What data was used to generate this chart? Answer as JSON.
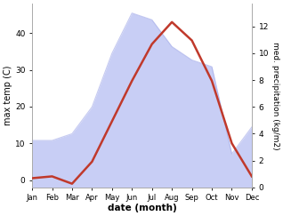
{
  "months": [
    "Jan",
    "Feb",
    "Mar",
    "Apr",
    "May",
    "Jun",
    "Jul",
    "Aug",
    "Sep",
    "Oct",
    "Nov",
    "Dec"
  ],
  "month_indices": [
    1,
    2,
    3,
    4,
    5,
    6,
    7,
    8,
    9,
    10,
    11,
    12
  ],
  "temperature": [
    0.5,
    1.0,
    -1.0,
    5.0,
    16.0,
    27.0,
    37.0,
    43.0,
    38.0,
    27.0,
    10.0,
    1.0
  ],
  "precipitation": [
    3.5,
    3.5,
    4.0,
    6.0,
    10.0,
    13.0,
    12.5,
    10.5,
    9.5,
    9.0,
    2.5,
    4.5
  ],
  "temp_color": "#c0392b",
  "precip_fill_color": "#c8cef5",
  "precip_line_color": "#a0a8e8",
  "ylabel_left": "max temp (C)",
  "ylabel_right": "med. precipitation (kg/m2)",
  "xlabel": "date (month)",
  "ylim_left": [
    -2,
    48
  ],
  "ylim_right": [
    0,
    13.7
  ],
  "yticks_left": [
    0,
    10,
    20,
    30,
    40
  ],
  "yticks_right": [
    0,
    2,
    4,
    6,
    8,
    10,
    12
  ],
  "bg_color": "#ffffff",
  "spine_color": "#aaaaaa",
  "precip_scale_factor": 3.5
}
